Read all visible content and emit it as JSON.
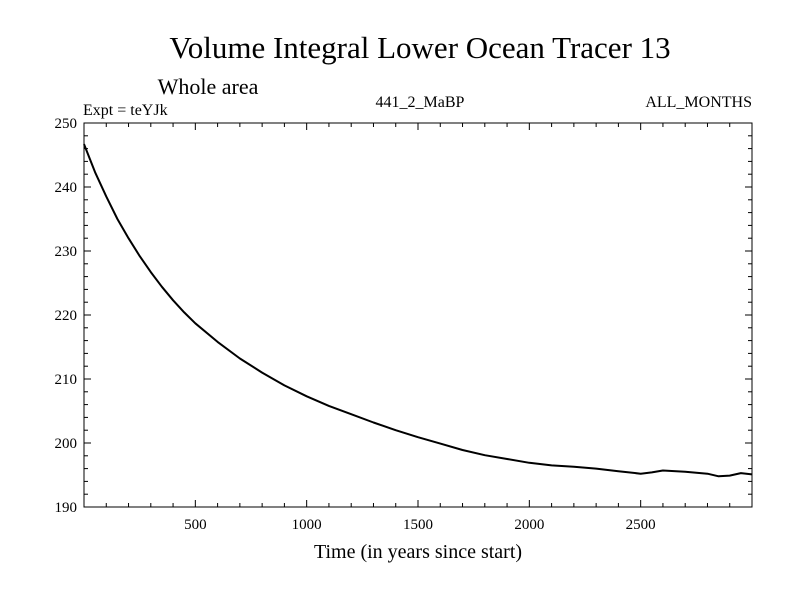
{
  "chart_data": {
    "type": "line",
    "title": "Volume Integral Lower Ocean Tracer 13",
    "subtitle": "Whole area",
    "expt_label": "Expt = teYJk",
    "center_label": "441_2_MaBP",
    "right_label": "ALL_MONTHS",
    "xlabel": "Time (in years since start)",
    "ylabel": "",
    "xlim": [
      0,
      3000
    ],
    "ylim": [
      190,
      250
    ],
    "x_ticks": [
      500,
      1000,
      1500,
      2000,
      2500
    ],
    "x_tick_labels": [
      "500",
      "1000",
      "1500",
      "2000",
      "2500"
    ],
    "y_ticks": [
      190,
      200,
      210,
      220,
      230,
      240,
      250
    ],
    "y_tick_labels": [
      "190",
      "200",
      "210",
      "220",
      "230",
      "240",
      "250"
    ],
    "grid": false,
    "series": [
      {
        "name": "Tracer 13",
        "color": "#000000",
        "x": [
          0,
          50,
          100,
          150,
          200,
          250,
          300,
          350,
          400,
          450,
          500,
          600,
          700,
          800,
          900,
          1000,
          1100,
          1200,
          1300,
          1400,
          1500,
          1600,
          1700,
          1800,
          1900,
          2000,
          2100,
          2200,
          2300,
          2400,
          2500,
          2550,
          2600,
          2700,
          2800,
          2850,
          2900,
          2950,
          3000
        ],
        "values": [
          246.7,
          242.3,
          238.5,
          235.0,
          232.0,
          229.2,
          226.7,
          224.4,
          222.3,
          220.4,
          218.7,
          215.8,
          213.2,
          211.0,
          209.0,
          207.3,
          205.8,
          204.5,
          203.2,
          202.0,
          200.9,
          199.9,
          198.9,
          198.1,
          197.5,
          196.9,
          196.5,
          196.3,
          196.0,
          195.6,
          195.2,
          195.4,
          195.7,
          195.5,
          195.2,
          194.8,
          194.9,
          195.3,
          195.1
        ]
      }
    ]
  }
}
